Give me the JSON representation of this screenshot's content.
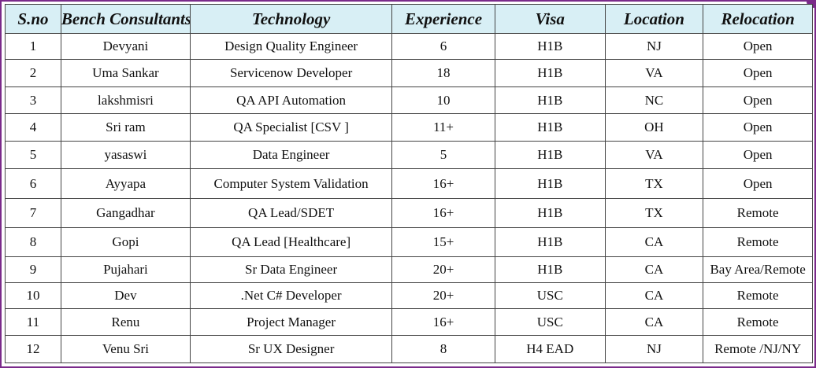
{
  "table": {
    "headers": [
      "S.no",
      "Bench Consultants",
      "Technology",
      "Experience",
      "Visa",
      "Location",
      "Relocation"
    ],
    "rows": [
      [
        "1",
        "Devyani",
        "Design Quality Engineer",
        "6",
        "H1B",
        "NJ",
        "Open"
      ],
      [
        "2",
        "Uma Sankar",
        "Servicenow Developer",
        "18",
        "H1B",
        "VA",
        "Open"
      ],
      [
        "3",
        "lakshmisri",
        "QA API Automation",
        "10",
        "H1B",
        "NC",
        "Open"
      ],
      [
        "4",
        "Sri ram",
        "QA Specialist [CSV ]",
        "11+",
        "H1B",
        "OH",
        "Open"
      ],
      [
        "5",
        "yasaswi",
        "Data Engineer",
        "5",
        "H1B",
        "VA",
        "Open"
      ],
      [
        "6",
        "Ayyapa",
        "Computer System Validation",
        "16+",
        "H1B",
        "TX",
        "Open"
      ],
      [
        "7",
        "Gangadhar",
        "QA Lead/SDET",
        "16+",
        "H1B",
        "TX",
        "Remote"
      ],
      [
        "8",
        "Gopi",
        "QA Lead [Healthcare]",
        "15+",
        "H1B",
        "CA",
        "Remote"
      ],
      [
        "9",
        "Pujahari",
        "Sr Data Engineer",
        "20+",
        "H1B",
        "CA",
        "Bay Area/Remote"
      ],
      [
        "10",
        "Dev",
        ".Net C# Developer",
        "20+",
        "USC",
        "CA",
        "Remote"
      ],
      [
        "11",
        "Renu",
        "Project Manager",
        "16+",
        "USC",
        "CA",
        "Remote"
      ],
      [
        "12",
        "Venu Sri",
        "Sr UX Designer",
        "8",
        "H4 EAD",
        "NJ",
        "Remote /NJ/NY"
      ]
    ]
  },
  "colors": {
    "header_bg": "#d8eff5",
    "frame": "#7a2a8a",
    "grid": "#444444"
  }
}
